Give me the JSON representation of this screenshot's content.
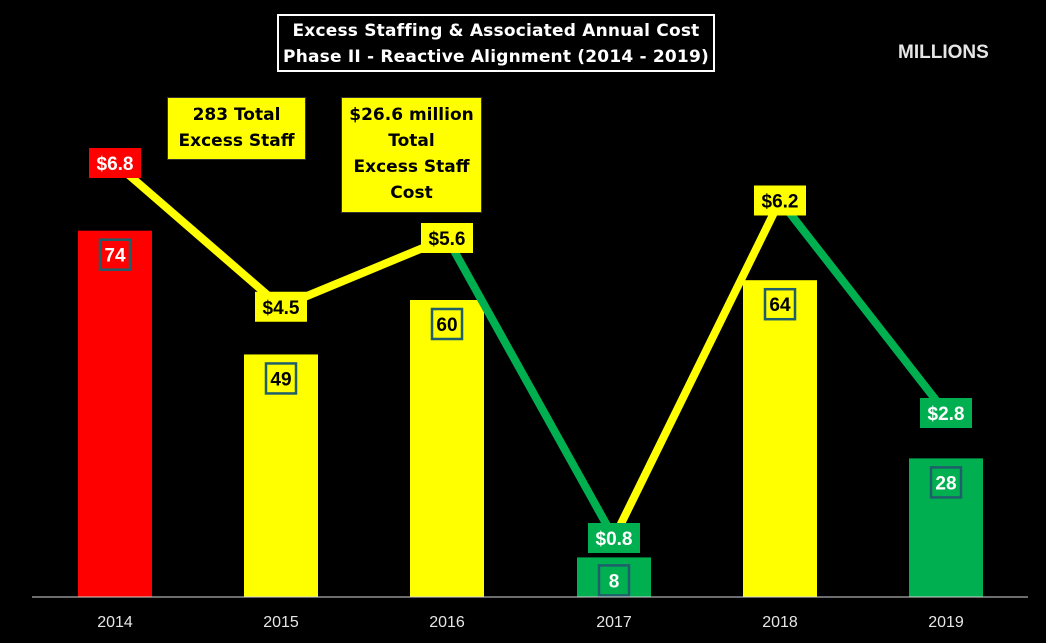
{
  "title": {
    "line1": "Excess Staffing & Associated Annual Cost",
    "line2": "Phase II - Reactive Alignment (2014 - 2019)"
  },
  "units_label": "MILLIONS",
  "callouts": {
    "total_staff": "283 Total\nExcess Staff",
    "total_cost": "$26.6 million\nTotal\nExcess Staff\nCost"
  },
  "chart_data": {
    "type": "bar",
    "categories": [
      "2014",
      "2015",
      "2016",
      "2017",
      "2018",
      "2019"
    ],
    "series": [
      {
        "type": "bar",
        "values": [
          74,
          49,
          60,
          8,
          64,
          28
        ],
        "labels": [
          "74",
          "49",
          "60",
          "8",
          "64",
          "28"
        ],
        "colors": [
          "#ff0000",
          "#ffff00",
          "#ffff00",
          "#00b050",
          "#ffff00",
          "#00b050"
        ]
      },
      {
        "type": "line",
        "values": [
          6.8,
          4.5,
          5.6,
          0.8,
          6.2,
          2.8
        ],
        "labels": [
          "$6.8",
          "$4.5",
          "$5.6",
          "$0.8",
          "$6.2",
          "$2.8"
        ],
        "colors": [
          "#ff0000",
          "#ffff00",
          "#ffff00",
          "#00b050",
          "#ffff00",
          "#00b050"
        ]
      }
    ],
    "grid": false,
    "legend": "none"
  }
}
